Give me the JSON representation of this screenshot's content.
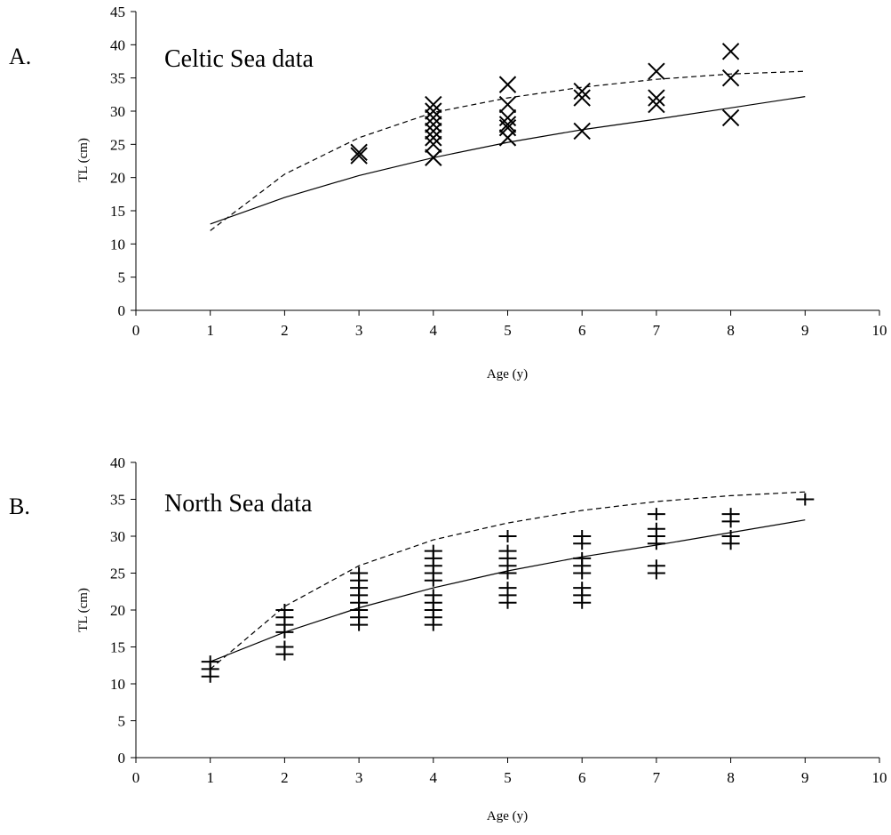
{
  "chart_data": [
    {
      "type": "scatter",
      "panel_label": "A.",
      "title": "Celtic Sea data",
      "xlabel": "Age (y)",
      "ylabel": "TL (cm)",
      "xlim": [
        0,
        10
      ],
      "ylim": [
        0,
        45
      ],
      "x_ticks": [
        "0",
        "1",
        "2",
        "3",
        "4",
        "5",
        "6",
        "7",
        "8",
        "9",
        "10"
      ],
      "y_ticks": [
        "0",
        "5",
        "10",
        "15",
        "20",
        "25",
        "30",
        "35",
        "40",
        "45"
      ],
      "grid": false,
      "marker": "x",
      "points": [
        {
          "x": 3,
          "y": 23.3
        },
        {
          "x": 3,
          "y": 23.8
        },
        {
          "x": 4,
          "y": 23
        },
        {
          "x": 4,
          "y": 25
        },
        {
          "x": 4,
          "y": 26
        },
        {
          "x": 4,
          "y": 27
        },
        {
          "x": 4,
          "y": 28
        },
        {
          "x": 4,
          "y": 29
        },
        {
          "x": 4,
          "y": 30
        },
        {
          "x": 4,
          "y": 31
        },
        {
          "x": 5,
          "y": 26
        },
        {
          "x": 5,
          "y": 27.5
        },
        {
          "x": 5,
          "y": 28
        },
        {
          "x": 5,
          "y": 29
        },
        {
          "x": 5,
          "y": 31
        },
        {
          "x": 5,
          "y": 34
        },
        {
          "x": 6,
          "y": 27
        },
        {
          "x": 6,
          "y": 32
        },
        {
          "x": 6,
          "y": 33
        },
        {
          "x": 7,
          "y": 31
        },
        {
          "x": 7,
          "y": 32
        },
        {
          "x": 7,
          "y": 36
        },
        {
          "x": 8,
          "y": 29
        },
        {
          "x": 8,
          "y": 35
        },
        {
          "x": 8,
          "y": 39
        }
      ],
      "series": [
        {
          "style": "solid",
          "x": [
            1,
            2,
            3,
            4,
            5,
            6,
            7,
            8,
            9
          ],
          "values": [
            13,
            17,
            20.3,
            23,
            25.3,
            27.2,
            28.8,
            30.5,
            32.2
          ]
        },
        {
          "style": "dashed",
          "x": [
            1,
            2,
            3,
            4,
            5,
            6,
            7,
            8,
            9
          ],
          "values": [
            12,
            20.5,
            26,
            29.8,
            32,
            33.6,
            34.8,
            35.6,
            36
          ]
        }
      ]
    },
    {
      "type": "scatter",
      "panel_label": "B.",
      "title": "North Sea data",
      "xlabel": "Age (y)",
      "ylabel": "TL (cm)",
      "xlim": [
        0,
        10
      ],
      "ylim": [
        0,
        40
      ],
      "x_ticks": [
        "0",
        "1",
        "2",
        "3",
        "4",
        "5",
        "6",
        "7",
        "8",
        "9",
        "10"
      ],
      "y_ticks": [
        "0",
        "5",
        "10",
        "15",
        "20",
        "25",
        "30",
        "35",
        "40"
      ],
      "grid": false,
      "marker": "+",
      "points": [
        {
          "x": 1,
          "y": 11
        },
        {
          "x": 1,
          "y": 12
        },
        {
          "x": 1,
          "y": 13
        },
        {
          "x": 2,
          "y": 14
        },
        {
          "x": 2,
          "y": 15
        },
        {
          "x": 2,
          "y": 17
        },
        {
          "x": 2,
          "y": 18
        },
        {
          "x": 2,
          "y": 19
        },
        {
          "x": 2,
          "y": 20
        },
        {
          "x": 3,
          "y": 18
        },
        {
          "x": 3,
          "y": 19
        },
        {
          "x": 3,
          "y": 20
        },
        {
          "x": 3,
          "y": 21
        },
        {
          "x": 3,
          "y": 22
        },
        {
          "x": 3,
          "y": 23
        },
        {
          "x": 3,
          "y": 24
        },
        {
          "x": 3,
          "y": 25
        },
        {
          "x": 4,
          "y": 18
        },
        {
          "x": 4,
          "y": 19
        },
        {
          "x": 4,
          "y": 20
        },
        {
          "x": 4,
          "y": 21
        },
        {
          "x": 4,
          "y": 22
        },
        {
          "x": 4,
          "y": 24
        },
        {
          "x": 4,
          "y": 25
        },
        {
          "x": 4,
          "y": 26
        },
        {
          "x": 4,
          "y": 27
        },
        {
          "x": 4,
          "y": 28
        },
        {
          "x": 5,
          "y": 21
        },
        {
          "x": 5,
          "y": 22
        },
        {
          "x": 5,
          "y": 23
        },
        {
          "x": 5,
          "y": 25
        },
        {
          "x": 5,
          "y": 26
        },
        {
          "x": 5,
          "y": 27
        },
        {
          "x": 5,
          "y": 28
        },
        {
          "x": 5,
          "y": 30
        },
        {
          "x": 6,
          "y": 21
        },
        {
          "x": 6,
          "y": 22
        },
        {
          "x": 6,
          "y": 23
        },
        {
          "x": 6,
          "y": 25
        },
        {
          "x": 6,
          "y": 26
        },
        {
          "x": 6,
          "y": 27
        },
        {
          "x": 6,
          "y": 29
        },
        {
          "x": 6,
          "y": 30
        },
        {
          "x": 7,
          "y": 25
        },
        {
          "x": 7,
          "y": 26
        },
        {
          "x": 7,
          "y": 29
        },
        {
          "x": 7,
          "y": 30
        },
        {
          "x": 7,
          "y": 31
        },
        {
          "x": 7,
          "y": 33
        },
        {
          "x": 8,
          "y": 29
        },
        {
          "x": 8,
          "y": 30
        },
        {
          "x": 8,
          "y": 32
        },
        {
          "x": 8,
          "y": 33
        },
        {
          "x": 9,
          "y": 35
        }
      ],
      "series": [
        {
          "style": "solid",
          "x": [
            1,
            2,
            3,
            4,
            5,
            6,
            7,
            8,
            9
          ],
          "values": [
            13,
            17,
            20.3,
            23,
            25.3,
            27.2,
            28.8,
            30.5,
            32.2
          ]
        },
        {
          "style": "dashed",
          "x": [
            1,
            2,
            3,
            4,
            5,
            6,
            7,
            8,
            9
          ],
          "values": [
            12,
            20.5,
            26,
            29.5,
            31.8,
            33.5,
            34.7,
            35.5,
            36
          ]
        }
      ]
    }
  ]
}
